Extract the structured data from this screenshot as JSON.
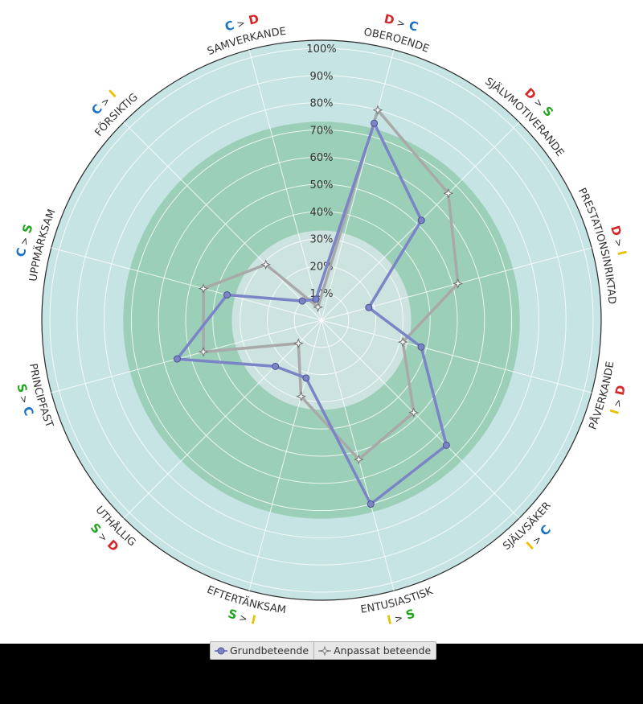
{
  "chart_data": {
    "type": "radar",
    "categories": [
      "OBEROENDE",
      "SJÄLVMOTIVERANDE",
      "PRESTATIONSINRIKTAD",
      "PÅVERKANDE",
      "SJÄLVSÄKER",
      "ENTUSIASTISK",
      "EFTERTÄNKSAM",
      "UTHÅLLIG",
      "PRINCIPFAST",
      "UPPMÄRKSAM",
      "FÖRSIKTIG",
      "SAMVERKANDE"
    ],
    "category_relations": [
      [
        {
          "letter": "D",
          "color": "#d62728"
        },
        {
          "letter": ">",
          "color": "#333333"
        },
        {
          "letter": "C",
          "color": "#1a73c6"
        }
      ],
      [
        {
          "letter": "D",
          "color": "#d62728"
        },
        {
          "letter": ">",
          "color": "#333333"
        },
        {
          "letter": "S",
          "color": "#21a51f"
        }
      ],
      [
        {
          "letter": "D",
          "color": "#d62728"
        },
        {
          "letter": ">",
          "color": "#333333"
        },
        {
          "letter": "I",
          "color": "#e8c100"
        }
      ],
      [
        {
          "letter": "I",
          "color": "#e8c100"
        },
        {
          "letter": ">",
          "color": "#333333"
        },
        {
          "letter": "D",
          "color": "#d62728"
        }
      ],
      [
        {
          "letter": "I",
          "color": "#e8c100"
        },
        {
          "letter": ">",
          "color": "#333333"
        },
        {
          "letter": "C",
          "color": "#1a73c6"
        }
      ],
      [
        {
          "letter": "I",
          "color": "#e8c100"
        },
        {
          "letter": ">",
          "color": "#333333"
        },
        {
          "letter": "S",
          "color": "#21a51f"
        }
      ],
      [
        {
          "letter": "S",
          "color": "#21a51f"
        },
        {
          "letter": ">",
          "color": "#333333"
        },
        {
          "letter": "I",
          "color": "#e8c100"
        }
      ],
      [
        {
          "letter": "S",
          "color": "#21a51f"
        },
        {
          "letter": ">",
          "color": "#333333"
        },
        {
          "letter": "D",
          "color": "#d62728"
        }
      ],
      [
        {
          "letter": "S",
          "color": "#21a51f"
        },
        {
          "letter": ">",
          "color": "#333333"
        },
        {
          "letter": "C",
          "color": "#1a73c6"
        }
      ],
      [
        {
          "letter": "C",
          "color": "#1a73c6"
        },
        {
          "letter": ">",
          "color": "#333333"
        },
        {
          "letter": "S",
          "color": "#21a51f"
        }
      ],
      [
        {
          "letter": "C",
          "color": "#1a73c6"
        },
        {
          "letter": ">",
          "color": "#333333"
        },
        {
          "letter": "I",
          "color": "#e8c100"
        }
      ],
      [
        {
          "letter": "C",
          "color": "#1a73c6"
        },
        {
          "letter": ">",
          "color": "#333333"
        },
        {
          "letter": "D",
          "color": "#d62728"
        }
      ]
    ],
    "radial_ticks": [
      "10%",
      "20%",
      "30%",
      "40%",
      "50%",
      "60%",
      "70%",
      "80%",
      "90%",
      "100%"
    ],
    "range": [
      0,
      100
    ],
    "zones": [
      {
        "from": 0,
        "to": 33,
        "color": "#cde3df"
      },
      {
        "from": 33,
        "to": 73,
        "color": "#9ccfb8"
      },
      {
        "from": 73,
        "to": 103,
        "color": "#c6e4e3"
      }
    ],
    "series": [
      {
        "name": "Grundbeteende",
        "color": "#7a84c6",
        "marker": "circle",
        "values": [
          75,
          52,
          18,
          38,
          65,
          70,
          22,
          24,
          55,
          36,
          10,
          8
        ]
      },
      {
        "name": "Anpassat beteende",
        "color": "#a9a9a9",
        "marker": "star",
        "values": [
          80,
          66,
          52,
          31,
          48,
          53,
          29,
          12,
          45,
          45,
          29,
          5
        ]
      }
    ],
    "grid": true,
    "legend": "bottom"
  },
  "legend": {
    "items": [
      "Grundbeteende",
      "Anpassat beteende"
    ]
  }
}
